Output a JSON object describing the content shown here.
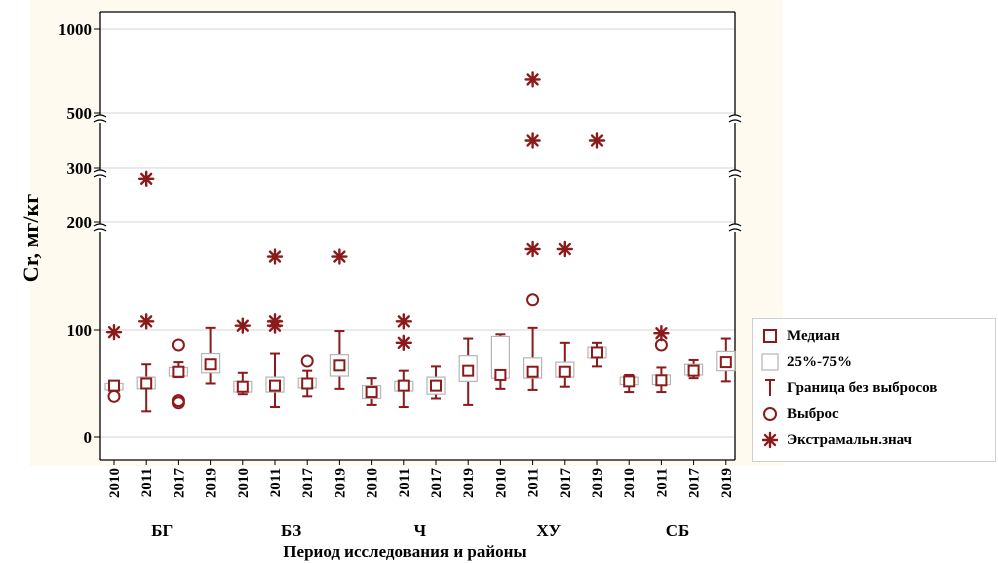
{
  "chart_data": {
    "type": "boxplot",
    "ylabel": "Cr, мг/кг",
    "xlabel": "Период исследования и районы",
    "y_tick_labels": [
      "0",
      "100",
      "200",
      "300",
      "500",
      "1000"
    ],
    "y_scale": "piecewise (broken axis)",
    "grid": "horizontal",
    "colors": {
      "mark": "#8b1a1a",
      "box_fill": "#ffffff",
      "box_edge": "#b5b5b5",
      "plot_bg": "#fffaf0",
      "grid": "#d4d4d4"
    },
    "groups": [
      {
        "name": "БГ",
        "years": [
          "2010",
          "2011",
          "2017",
          "2019"
        ]
      },
      {
        "name": "БЗ",
        "years": [
          "2010",
          "2011",
          "2017",
          "2019"
        ]
      },
      {
        "name": "Ч",
        "years": [
          "2010",
          "2011",
          "2017",
          "2019"
        ]
      },
      {
        "name": "ХУ",
        "years": [
          "2010",
          "2011",
          "2017",
          "2019"
        ]
      },
      {
        "name": "СБ",
        "years": [
          "2010",
          "2011",
          "2017",
          "2019"
        ]
      }
    ],
    "boxes": [
      {
        "group": "БГ",
        "year": "2010",
        "median": 48,
        "q1": 44,
        "q3": 50,
        "wlo": 44,
        "whi": 50,
        "outliers": [
          38
        ],
        "extremes": [
          98
        ]
      },
      {
        "group": "БГ",
        "year": "2011",
        "median": 50,
        "q1": 45,
        "q3": 56,
        "wlo": 24,
        "whi": 68,
        "outliers": [],
        "extremes": [
          108,
          280
        ]
      },
      {
        "group": "БГ",
        "year": "2017",
        "median": 61,
        "q1": 57,
        "q3": 65,
        "wlo": 56,
        "whi": 70,
        "outliers": [
          32,
          34,
          86
        ],
        "extremes": []
      },
      {
        "group": "БГ",
        "year": "2019",
        "median": 68,
        "q1": 60,
        "q3": 78,
        "wlo": 50,
        "whi": 102,
        "outliers": [],
        "extremes": []
      },
      {
        "group": "БЗ",
        "year": "2010",
        "median": 47,
        "q1": 42,
        "q3": 52,
        "wlo": 40,
        "whi": 60,
        "outliers": [],
        "extremes": [
          104
        ]
      },
      {
        "group": "БЗ",
        "year": "2011",
        "median": 48,
        "q1": 42,
        "q3": 56,
        "wlo": 28,
        "whi": 78,
        "outliers": [],
        "extremes": [
          104,
          108,
          168
        ]
      },
      {
        "group": "БЗ",
        "year": "2017",
        "median": 50,
        "q1": 46,
        "q3": 55,
        "wlo": 38,
        "whi": 62,
        "outliers": [
          71
        ],
        "extremes": []
      },
      {
        "group": "БЗ",
        "year": "2019",
        "median": 67,
        "q1": 57,
        "q3": 77,
        "wlo": 45,
        "whi": 99,
        "outliers": [],
        "extremes": [
          168
        ]
      },
      {
        "group": "Ч",
        "year": "2010",
        "median": 42,
        "q1": 36,
        "q3": 48,
        "wlo": 30,
        "whi": 55,
        "outliers": [],
        "extremes": []
      },
      {
        "group": "Ч",
        "year": "2011",
        "median": 48,
        "q1": 43,
        "q3": 52,
        "wlo": 28,
        "whi": 62,
        "outliers": [],
        "extremes": [
          88,
          108
        ]
      },
      {
        "group": "Ч",
        "year": "2017",
        "median": 48,
        "q1": 40,
        "q3": 56,
        "wlo": 36,
        "whi": 66,
        "outliers": [],
        "extremes": []
      },
      {
        "group": "Ч",
        "year": "2019",
        "median": 62,
        "q1": 52,
        "q3": 76,
        "wlo": 30,
        "whi": 92,
        "outliers": [],
        "extremes": []
      },
      {
        "group": "ХУ",
        "year": "2010",
        "median": 58,
        "q1": 55,
        "q3": 94,
        "wlo": 45,
        "whi": 96,
        "outliers": [],
        "extremes": []
      },
      {
        "group": "ХУ",
        "year": "2011",
        "median": 61,
        "q1": 55,
        "q3": 74,
        "wlo": 44,
        "whi": 102,
        "outliers": [
          128
        ],
        "extremes": [
          175,
          400,
          700
        ]
      },
      {
        "group": "ХУ",
        "year": "2017",
        "median": 61,
        "q1": 56,
        "q3": 70,
        "wlo": 47,
        "whi": 88,
        "outliers": [],
        "extremes": [
          175
        ]
      },
      {
        "group": "ХУ",
        "year": "2019",
        "median": 79,
        "q1": 74,
        "q3": 84,
        "wlo": 66,
        "whi": 88,
        "outliers": [],
        "extremes": [
          400
        ]
      },
      {
        "group": "СБ",
        "year": "2010",
        "median": 52,
        "q1": 49,
        "q3": 56,
        "wlo": 42,
        "whi": 58,
        "outliers": [],
        "extremes": []
      },
      {
        "group": "СБ",
        "year": "2011",
        "median": 53,
        "q1": 49,
        "q3": 58,
        "wlo": 42,
        "whi": 65,
        "outliers": [
          86
        ],
        "extremes": [
          97
        ]
      },
      {
        "group": "СБ",
        "year": "2017",
        "median": 62,
        "q1": 58,
        "q3": 68,
        "wlo": 55,
        "whi": 72,
        "outliers": [],
        "extremes": []
      },
      {
        "group": "СБ",
        "year": "2019",
        "median": 70,
        "q1": 62,
        "q3": 80,
        "wlo": 52,
        "whi": 92,
        "outliers": [],
        "extremes": []
      }
    ],
    "legend": {
      "position": "right",
      "items": [
        {
          "label": "Медиан",
          "symbol": "square"
        },
        {
          "label": "25%-75%",
          "symbol": "box"
        },
        {
          "label": "Граница без выбросов",
          "symbol": "whisker"
        },
        {
          "label": "Выброс",
          "symbol": "circle"
        },
        {
          "label": "Экстрамальн.знач",
          "symbol": "asterisk"
        }
      ]
    }
  }
}
